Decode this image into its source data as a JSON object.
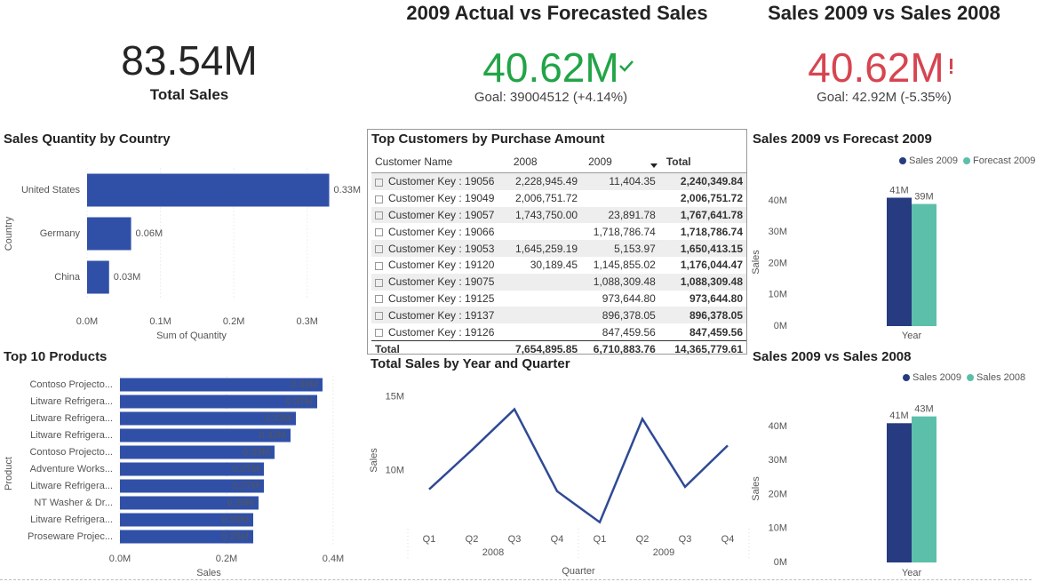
{
  "kpis": [
    {
      "value": "83.54M",
      "label": "Total Sales"
    },
    {
      "title": "2009 Actual vs Forecasted Sales",
      "value": "40.62M",
      "goal": "Goal: 39004512 (+4.14%)"
    },
    {
      "title": "Sales 2009 vs Sales 2008",
      "value": "40.62M",
      "goal": "Goal: 42.92M (-5.35%)"
    }
  ],
  "table": {
    "title": "Top Customers by Purchase Amount",
    "columns": [
      "Customer Name",
      "2008",
      "2009",
      "Total"
    ],
    "rows": [
      [
        "Customer Key : 19056",
        "2,228,945.49",
        "11,404.35",
        "2,240,349.84"
      ],
      [
        "Customer Key : 19049",
        "2,006,751.72",
        null,
        "2,006,751.72"
      ],
      [
        "Customer Key : 19057",
        "1,743,750.00",
        "23,891.78",
        "1,767,641.78"
      ],
      [
        "Customer Key : 19066",
        null,
        "1,718,786.74",
        "1,718,786.74"
      ],
      [
        "Customer Key : 19053",
        "1,645,259.19",
        "5,153.97",
        "1,650,413.15"
      ],
      [
        "Customer Key : 19120",
        "30,189.45",
        "1,145,855.02",
        "1,176,044.47"
      ],
      [
        "Customer Key : 19075",
        null,
        "1,088,309.48",
        "1,088,309.48"
      ],
      [
        "Customer Key : 19125",
        null,
        "973,644.80",
        "973,644.80"
      ],
      [
        "Customer Key : 19137",
        null,
        "896,378.05",
        "896,378.05"
      ],
      [
        "Customer Key : 19126",
        null,
        "847,459.56",
        "847,459.56"
      ]
    ],
    "total": [
      "Total",
      "7,654,895.85",
      "6,710,883.76",
      "14,365,779.61"
    ]
  },
  "chart_data": [
    {
      "type": "hbar",
      "title": "Sales Quantity by Country",
      "categories": [
        "United States",
        "Germany",
        "China"
      ],
      "values": [
        0.33,
        0.06,
        0.03
      ],
      "value_labels": [
        "0.33M",
        "0.06M",
        "0.03M"
      ],
      "color": "#3050a8",
      "xlim": [
        0,
        0.333
      ],
      "xticks": [
        {
          "value": 0,
          "label": "0.0M"
        },
        {
          "value": 0.1,
          "label": "0.1M"
        },
        {
          "value": 0.2,
          "label": "0.2M"
        },
        {
          "value": 0.3,
          "label": "0.3M"
        }
      ],
      "xlabel": "Sum of Quantity",
      "ylabel": "Country",
      "grid": true
    },
    {
      "type": "hbar",
      "title": "Top 10 Products",
      "categories": [
        "Contoso Projecto...",
        "Litware Refrigera...",
        "Litware Refrigera...",
        "Litware Refrigera...",
        "Contoso Projecto...",
        "Adventure Works...",
        "Litware Refrigera...",
        "NT Washer & Dr...",
        "Litware Refrigera...",
        "Proseware Projec..."
      ],
      "values": [
        0.38,
        0.37,
        0.33,
        0.32,
        0.29,
        0.27,
        0.27,
        0.26,
        0.25,
        0.25
      ],
      "value_labels": [
        "0.38M",
        "0.37M",
        "0.33M",
        "0.32M",
        "0.29M",
        "0.27M",
        "0.27M",
        "0.26M",
        "0.25M",
        "0.25M"
      ],
      "color": "#3050a8",
      "xlim": [
        0,
        0.4
      ],
      "xticks": [
        {
          "value": 0,
          "label": "0.0M"
        },
        {
          "value": 0.2,
          "label": "0.2M"
        },
        {
          "value": 0.4,
          "label": "0.4M"
        }
      ],
      "xlabel": "Sales",
      "ylabel": "Product",
      "grid": true
    },
    {
      "type": "line",
      "title": "Total Sales by Year and Quarter",
      "categories": [
        "Q1",
        "Q2",
        "Q3",
        "Q4",
        "Q1",
        "Q2",
        "Q3",
        "Q4"
      ],
      "groups": [
        "2008",
        "2009"
      ],
      "values": [
        8.73,
        11.39,
        14.16,
        8.6,
        6.5,
        13.5,
        8.9,
        11.7
      ],
      "color": "#2f4a95",
      "ylim": [
        6,
        15.7
      ],
      "yticks": [
        {
          "value": 10,
          "label": "10M"
        },
        {
          "value": 15,
          "label": "15M"
        }
      ],
      "xlabel": "Quarter",
      "ylabel": "Sales"
    },
    {
      "type": "column",
      "title": "Sales 2009 vs Forecast 2009",
      "xlabel": "Year",
      "ylabel": "Sales",
      "series": [
        {
          "name": "Sales 2009",
          "color": "#263b80",
          "values": [
            41
          ],
          "value_labels": [
            "41M"
          ]
        },
        {
          "name": "Forecast 2009",
          "color": "#5cbfa9",
          "values": [
            39
          ],
          "value_labels": [
            "39M"
          ]
        }
      ],
      "ylim": [
        0,
        45
      ],
      "yticks": [
        {
          "value": 0,
          "label": "0M"
        },
        {
          "value": 10,
          "label": "10M"
        },
        {
          "value": 20,
          "label": "20M"
        },
        {
          "value": 30,
          "label": "30M"
        },
        {
          "value": 40,
          "label": "40M"
        }
      ],
      "legend": "top-right"
    },
    {
      "type": "column",
      "title": "Sales 2009 vs Sales 2008",
      "xlabel": "Year",
      "ylabel": "Sales",
      "series": [
        {
          "name": "Sales 2009",
          "color": "#263b80",
          "values": [
            41
          ],
          "value_labels": [
            "41M"
          ]
        },
        {
          "name": "Sales 2008",
          "color": "#5cbfa9",
          "values": [
            43
          ],
          "value_labels": [
            "43M"
          ]
        }
      ],
      "ylim": [
        0,
        45
      ],
      "yticks": [
        {
          "value": 0,
          "label": "0M"
        },
        {
          "value": 10,
          "label": "10M"
        },
        {
          "value": 20,
          "label": "20M"
        },
        {
          "value": 30,
          "label": "30M"
        },
        {
          "value": 40,
          "label": "40M"
        }
      ],
      "legend": "top-right"
    }
  ]
}
